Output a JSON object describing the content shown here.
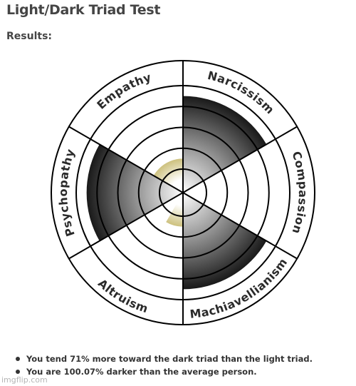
{
  "page": {
    "title": "Light/Dark Triad Test",
    "subtitle": "Results:"
  },
  "chart_data": {
    "type": "radial",
    "max_level": 5,
    "traits": [
      {
        "name": "Narcissism",
        "level": 4.5,
        "triad": "dark"
      },
      {
        "name": "Compassion",
        "level": 0,
        "triad": "light"
      },
      {
        "name": "Machiavellianism",
        "level": 4.5,
        "triad": "dark"
      },
      {
        "name": "Altruism",
        "level": 0,
        "triad": "light"
      },
      {
        "name": "Psychopathy",
        "level": 4.5,
        "triad": "dark"
      },
      {
        "name": "Empathy",
        "level": 0,
        "triad": "light"
      }
    ],
    "center_indicator": {
      "level": 1.5,
      "color": "#c8b95a"
    }
  },
  "results": [
    "You tend 71% more toward the dark triad than the light triad.",
    "You are 100.07% darker than the average person."
  ],
  "watermark": "imgflip.com"
}
